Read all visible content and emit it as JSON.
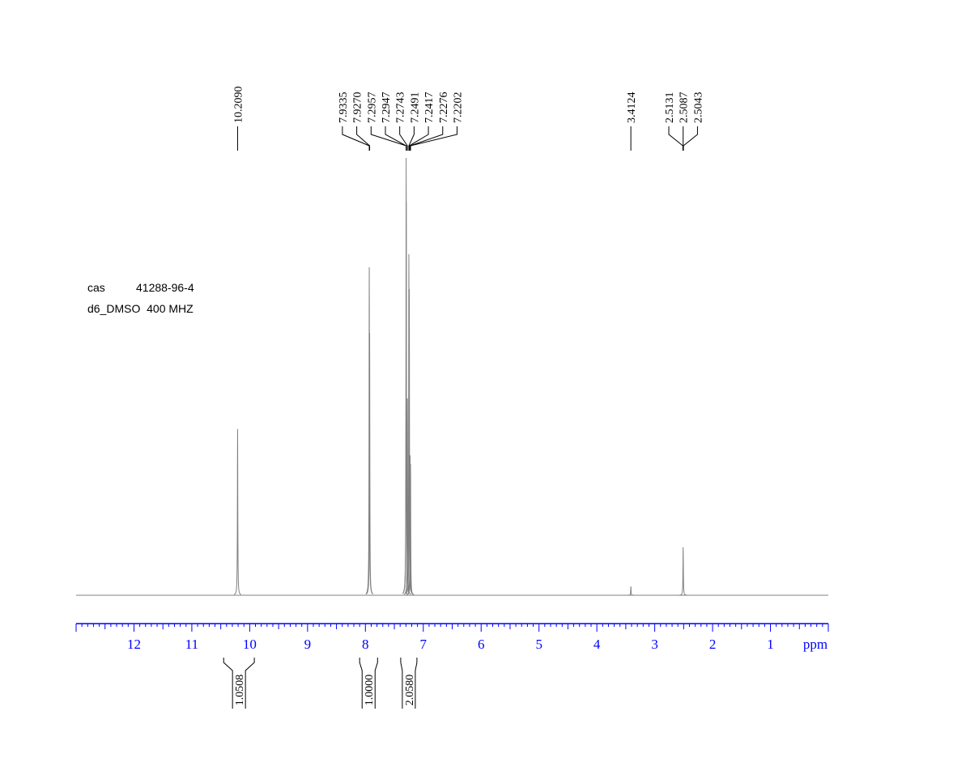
{
  "chart_data": {
    "type": "nmr",
    "xlim": [
      13,
      0
    ],
    "xticks": [
      12,
      11,
      10,
      9,
      8,
      7,
      6,
      5,
      4,
      3,
      2,
      1
    ],
    "xlabel": "ppm",
    "ylim": [
      0,
      100
    ],
    "axis_color": "#0000ff",
    "line_color": "#808080",
    "annotations": [
      "cas",
      "41288-96-4",
      "d6_DMSO  400 MHZ"
    ],
    "peaks": {
      "x": [
        10.209,
        7.9335,
        7.927,
        7.2957,
        7.2947,
        7.2743,
        7.2491,
        7.2417,
        7.2276,
        7.2202,
        3.4124,
        2.5087
      ],
      "values": [
        38,
        75,
        60,
        100,
        90,
        45,
        78,
        70,
        32,
        30,
        2,
        11
      ]
    },
    "peak_labels": [
      {
        "value": 10.209,
        "label": "10.2090"
      },
      {
        "value": 7.9335,
        "label": "7.9335"
      },
      {
        "value": 7.927,
        "label": "7.9270"
      },
      {
        "value": 7.2957,
        "label": "7.2957"
      },
      {
        "value": 7.2947,
        "label": "7.2947"
      },
      {
        "value": 7.2743,
        "label": "7.2743"
      },
      {
        "value": 7.2491,
        "label": "7.2491"
      },
      {
        "value": 7.2417,
        "label": "7.2417"
      },
      {
        "value": 7.2276,
        "label": "7.2276"
      },
      {
        "value": 7.2202,
        "label": "7.2202"
      },
      {
        "value": 3.4124,
        "label": "3.4124"
      },
      {
        "value": 2.5131,
        "label": "2.5131"
      },
      {
        "value": 2.5087,
        "label": "2.5087"
      },
      {
        "value": 2.5043,
        "label": "2.5043"
      }
    ],
    "integrals": [
      {
        "from": 10.45,
        "to": 9.92,
        "value": 1.0508
      },
      {
        "from": 8.1,
        "to": 7.79,
        "value": 1,
        "label": "1.0000"
      },
      {
        "from": 7.39,
        "to": 7.11,
        "value": 2.058,
        "label": "2.0580"
      }
    ]
  }
}
